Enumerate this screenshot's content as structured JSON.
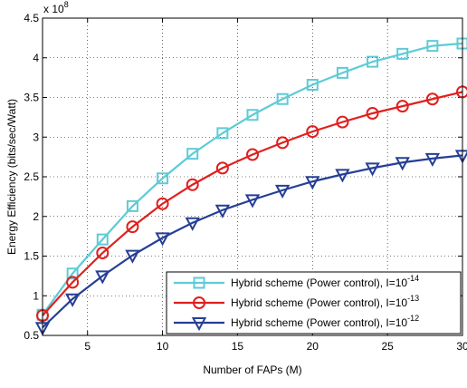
{
  "chart_data": {
    "type": "line",
    "title": "",
    "xlabel": "Number of FAPs (M)",
    "ylabel": "Energy Efficiency (bits/sec/Watt)",
    "y_exponent_label": "x 10",
    "y_exponent_power": "8",
    "xlim": [
      2,
      30
    ],
    "ylim": [
      0.5,
      4.5
    ],
    "xticks": [
      5,
      10,
      15,
      20,
      25,
      30
    ],
    "yticks": [
      0.5,
      1,
      1.5,
      2,
      2.5,
      3,
      3.5,
      4,
      4.5
    ],
    "xtick_labels": [
      "5",
      "10",
      "15",
      "20",
      "25",
      "30"
    ],
    "ytick_labels": [
      "0.5",
      "1",
      "1.5",
      "2",
      "2.5",
      "3",
      "3.5",
      "4",
      "4.5"
    ],
    "grid": true,
    "legend_position": "bottom-right",
    "x": [
      2,
      4,
      6,
      8,
      10,
      12,
      14,
      16,
      18,
      20,
      22,
      24,
      26,
      28,
      30
    ],
    "series": [
      {
        "name": "Hybrid scheme (Power control), I=10",
        "name_exponent": "-14",
        "color": "#5ecbd6",
        "marker": "square",
        "values": [
          0.76,
          1.28,
          1.71,
          2.13,
          2.48,
          2.79,
          3.05,
          3.28,
          3.48,
          3.66,
          3.81,
          3.95,
          4.05,
          4.15,
          4.18
        ]
      },
      {
        "name": "Hybrid scheme (Power control), I=10",
        "name_exponent": "-13",
        "color": "#e0201e",
        "marker": "circle",
        "values": [
          0.75,
          1.17,
          1.54,
          1.87,
          2.16,
          2.4,
          2.61,
          2.78,
          2.93,
          3.07,
          3.19,
          3.3,
          3.39,
          3.48,
          3.57
        ]
      },
      {
        "name": "Hybrid scheme (Power control), I=10",
        "name_exponent": "-12",
        "color": "#263f94",
        "marker": "triangle-down",
        "values": [
          0.6,
          0.96,
          1.25,
          1.51,
          1.73,
          1.92,
          2.08,
          2.21,
          2.33,
          2.44,
          2.53,
          2.61,
          2.68,
          2.73,
          2.77
        ]
      }
    ]
  }
}
